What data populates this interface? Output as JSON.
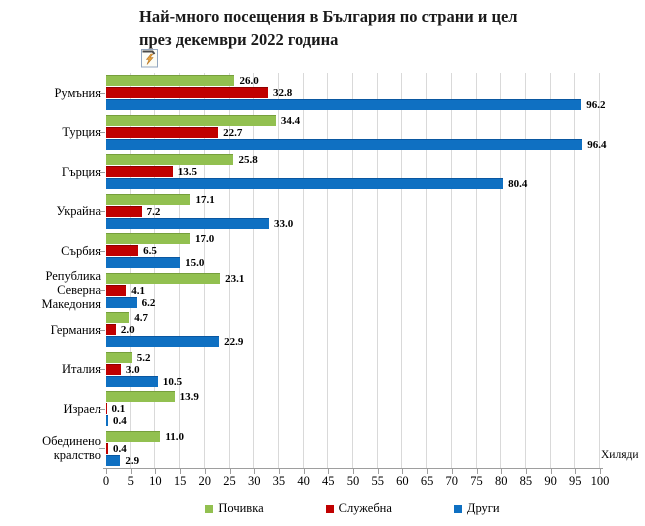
{
  "title": "Най-много посещения в България по страни и цел\nпрез декември 2022 година",
  "icon": {
    "name": "broken-image-icon"
  },
  "axis": {
    "unit_label": "Хиляди",
    "x_min": 0,
    "x_max": 100,
    "x_step": 5
  },
  "colors": {
    "grid": "#d9d9d9",
    "axis": "#9e9e9e",
    "text": "#000000"
  },
  "chart_data": {
    "type": "bar",
    "orientation": "horizontal",
    "title": "Най-много посещения в България по страни и цел през декември 2022 година",
    "xlabel": "Хиляди",
    "ylabel": "",
    "xlim": [
      0,
      100
    ],
    "xtick_step": 5,
    "grid": true,
    "legend_position": "bottom",
    "categories": [
      "Румъния",
      "Турция",
      "Гърция",
      "Украйна",
      "Сърбия",
      "Република\nСеверна Македония",
      "Германия",
      "Италия",
      "Израел",
      "Обединено кралство"
    ],
    "series": [
      {
        "name": "Почивка",
        "color": "#92c050",
        "edge": "#769f3c",
        "values": [
          26.0,
          34.4,
          25.8,
          17.1,
          17.0,
          23.1,
          4.7,
          5.2,
          13.9,
          11.0
        ]
      },
      {
        "name": "Служебна",
        "color": "#c00000",
        "edge": "#8e0000",
        "values": [
          32.8,
          22.7,
          13.5,
          7.2,
          6.5,
          4.1,
          2.0,
          3.0,
          0.1,
          0.4
        ]
      },
      {
        "name": "Други",
        "color": "#0f70c2",
        "edge": "#0a57a0",
        "values": [
          96.2,
          96.4,
          80.4,
          33.0,
          15.0,
          6.2,
          22.9,
          10.5,
          0.4,
          2.9
        ]
      }
    ]
  }
}
